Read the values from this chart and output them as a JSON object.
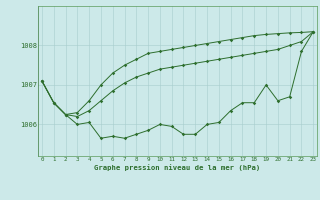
{
  "title": "Graphe pression niveau de la mer (hPa)",
  "bg_color": "#cce9e9",
  "line_color": "#2d6e2d",
  "xlim_min": -0.3,
  "xlim_max": 23.3,
  "ylim_min": 1005.2,
  "ylim_max": 1009.0,
  "yticks": [
    1006,
    1007,
    1008
  ],
  "xticks": [
    0,
    1,
    2,
    3,
    4,
    5,
    6,
    7,
    8,
    9,
    10,
    11,
    12,
    13,
    14,
    15,
    16,
    17,
    18,
    19,
    20,
    21,
    22,
    23
  ],
  "series": [
    [
      1007.1,
      1006.55,
      1006.25,
      1006.0,
      1006.05,
      1005.65,
      1005.7,
      1005.65,
      1005.75,
      1005.85,
      1006.0,
      1005.95,
      1005.75,
      1005.75,
      1006.0,
      1006.05,
      1006.35,
      1006.55,
      1006.55,
      1007.0,
      1006.6,
      1006.7,
      1007.85,
      1008.35
    ],
    [
      1007.1,
      1006.55,
      1006.25,
      1006.2,
      1006.35,
      1006.6,
      1006.85,
      1007.05,
      1007.2,
      1007.3,
      1007.4,
      1007.45,
      1007.5,
      1007.55,
      1007.6,
      1007.65,
      1007.7,
      1007.75,
      1007.8,
      1007.85,
      1007.9,
      1008.0,
      1008.1,
      1008.35
    ],
    [
      1007.1,
      1006.55,
      1006.25,
      1006.3,
      1006.6,
      1007.0,
      1007.3,
      1007.5,
      1007.65,
      1007.8,
      1007.85,
      1007.9,
      1007.95,
      1008.0,
      1008.05,
      1008.1,
      1008.15,
      1008.2,
      1008.25,
      1008.28,
      1008.3,
      1008.32,
      1008.33,
      1008.35
    ]
  ]
}
